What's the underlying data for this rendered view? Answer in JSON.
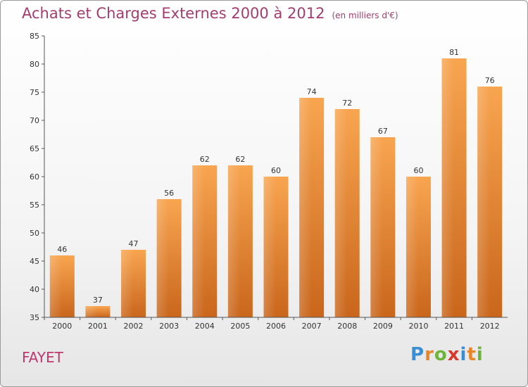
{
  "header": {
    "title": "Achats et Charges Externes 2000 à 2012",
    "subtitle": "(en milliers d'€)"
  },
  "footer": {
    "place": "FAYET",
    "logo_letters": [
      "P",
      "r",
      "o",
      "x",
      "i",
      "t",
      "i"
    ]
  },
  "colors": {
    "bar_top": "#f8a550",
    "bar_bottom": "#c9661c",
    "axis": "#555555",
    "text": "#333333"
  },
  "chart_data": {
    "type": "bar",
    "categories": [
      "2000",
      "2001",
      "2002",
      "2003",
      "2004",
      "2005",
      "2006",
      "2007",
      "2008",
      "2009",
      "2010",
      "2011",
      "2012"
    ],
    "values": [
      46,
      37,
      47,
      56,
      62,
      62,
      60,
      74,
      72,
      67,
      60,
      81,
      76
    ],
    "data_labels": [
      "46",
      "37",
      "47",
      "56",
      "62",
      "62",
      "60",
      "74",
      "72",
      "67",
      "60",
      "81",
      "76"
    ],
    "yticks": [
      "35",
      "40",
      "45",
      "50",
      "55",
      "60",
      "65",
      "70",
      "75",
      "80",
      "85"
    ],
    "ylim": [
      35,
      85
    ],
    "grid": false
  }
}
